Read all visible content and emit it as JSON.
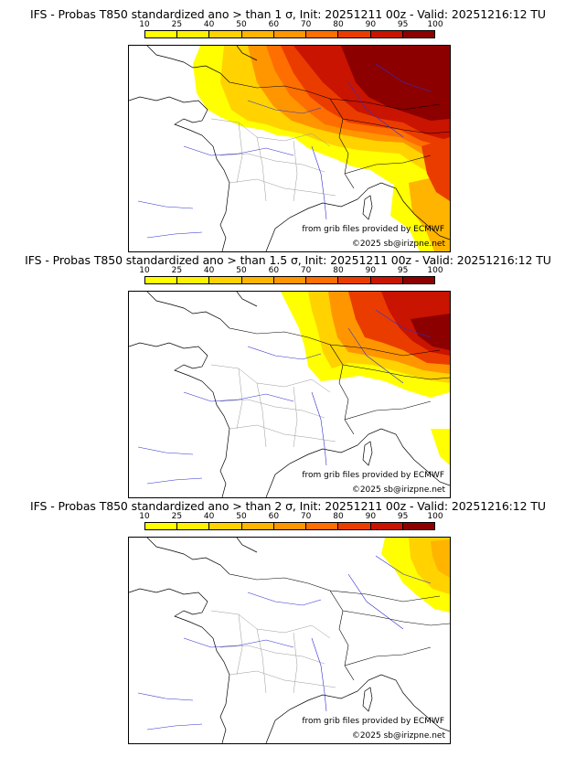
{
  "colorbar": {
    "ticks": [
      "10",
      "25",
      "40",
      "50",
      "60",
      "70",
      "80",
      "90",
      "95",
      "100"
    ],
    "colors": [
      "#ffff00",
      "#fff200",
      "#ffd200",
      "#ffb400",
      "#ff9600",
      "#ff6e00",
      "#eb3c00",
      "#c81400",
      "#8c0000"
    ]
  },
  "map_colors": {
    "coast": "#000000",
    "borders": "#000000",
    "regions": "#9a9a9a",
    "rivers": "#3030d0"
  },
  "panels": [
    {
      "title": "IFS - Probas T850  standardized ano > than 1 σ, Init: 20251211 00z - Valid: 20251216:12 TU",
      "credit_source": "from grib files provided by ECMWF",
      "credit_copyright": "©2025 sb@irizpne.net"
    },
    {
      "title": "IFS - Probas T850  standardized ano > than 1.5 σ, Init: 20251211 00z - Valid: 20251216:12 TU",
      "credit_source": "from grib files provided by ECMWF",
      "credit_copyright": "©2025 sb@irizpne.net"
    },
    {
      "title": "IFS - Probas T850  standardized ano > than 2 σ, Init: 20251211 00z - Valid: 20251216:12 TU",
      "credit_source": "from grib files provided by ECMWF",
      "credit_copyright": "©2025 sb@irizpne.net"
    }
  ]
}
